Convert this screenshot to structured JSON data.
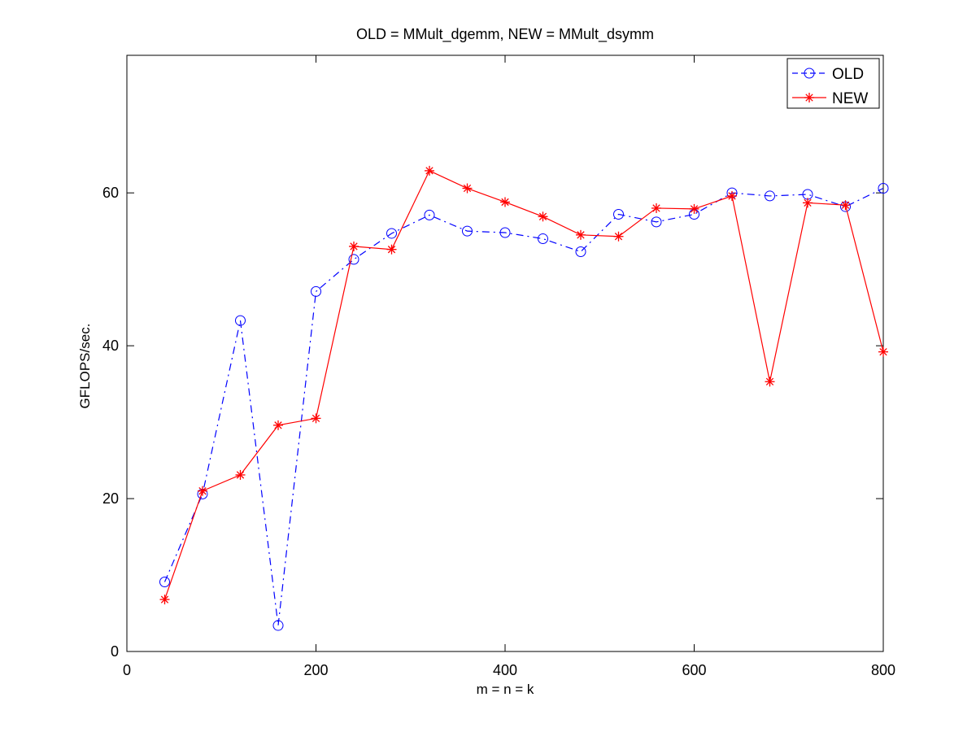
{
  "chart_data": {
    "type": "line",
    "title": "OLD = MMult_dgemm, NEW = MMult_dsymm",
    "xlabel": "m = n = k",
    "ylabel": "GFLOPS/sec.",
    "xlim": [
      0,
      800
    ],
    "ylim": [
      0,
      78
    ],
    "xticks": [
      0,
      200,
      400,
      600,
      800
    ],
    "yticks": [
      0,
      20,
      40,
      60
    ],
    "grid": false,
    "legend_position": "top-right",
    "x": [
      40,
      80,
      120,
      160,
      200,
      240,
      280,
      320,
      360,
      400,
      440,
      480,
      520,
      560,
      600,
      640,
      680,
      720,
      760,
      800
    ],
    "series": [
      {
        "name": "OLD",
        "color": "#0000ff",
        "line_style": "dash-dot",
        "marker": "circle",
        "values": [
          9.1,
          20.6,
          43.3,
          3.4,
          47.1,
          51.3,
          54.7,
          57.1,
          55.0,
          54.8,
          54.0,
          52.3,
          57.2,
          56.2,
          57.2,
          60.0,
          59.6,
          59.8,
          58.2,
          60.6
        ]
      },
      {
        "name": "NEW",
        "color": "#ff0000",
        "line_style": "solid",
        "marker": "asterisk",
        "values": [
          6.8,
          21.0,
          23.1,
          29.6,
          30.5,
          53.0,
          52.6,
          62.9,
          60.6,
          58.8,
          56.9,
          54.5,
          54.3,
          58.0,
          57.9,
          59.6,
          35.3,
          58.7,
          58.4,
          39.2
        ]
      }
    ]
  }
}
